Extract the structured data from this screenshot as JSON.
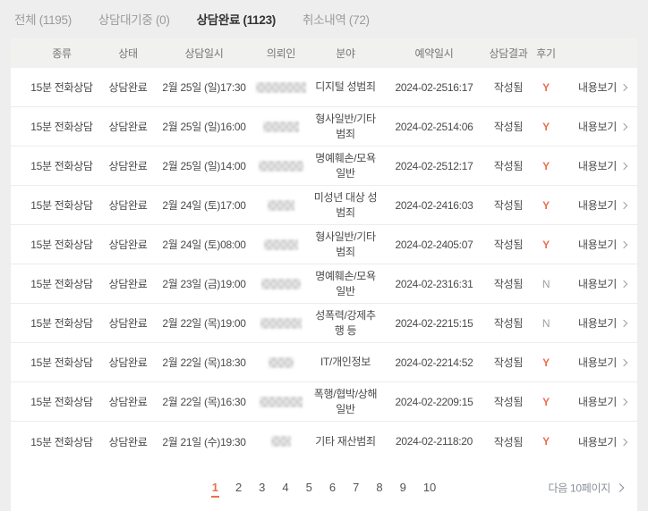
{
  "colors": {
    "accent": "#e8704f",
    "review_no": "#9aa0a6",
    "header_bg": "#f1f1ef"
  },
  "tabs": [
    {
      "key": "all",
      "label": "전체",
      "count": "1195",
      "active": false
    },
    {
      "key": "waiting",
      "label": "상담대기중",
      "count": "0",
      "active": false
    },
    {
      "key": "completed",
      "label": "상담완료",
      "count": "1123",
      "active": true
    },
    {
      "key": "canceled",
      "label": "취소내역",
      "count": "72",
      "active": false
    }
  ],
  "table": {
    "columns": [
      "종류",
      "상태",
      "상담일시",
      "의뢰인",
      "분야",
      "예약일시",
      "상담결과",
      "후기",
      ""
    ],
    "view_label": "내용보기",
    "rows": [
      {
        "type": "15분 전화상담",
        "status": "상담완료",
        "datetime": "2월 25일 (일)17:30",
        "client_masked": true,
        "mask_w": 56,
        "field": "디지털 성범죄",
        "reserved": "2024-02-2516:17",
        "result": "작성됨",
        "review": "Y"
      },
      {
        "type": "15분 전화상담",
        "status": "상담완료",
        "datetime": "2월 25일 (일)16:00",
        "client_masked": true,
        "mask_w": 40,
        "field": "형사일반/기타범죄",
        "reserved": "2024-02-2514:06",
        "result": "작성됨",
        "review": "Y"
      },
      {
        "type": "15분 전화상담",
        "status": "상담완료",
        "datetime": "2월 25일 (일)14:00",
        "client_masked": true,
        "mask_w": 50,
        "field": "명예훼손/모욕 일반",
        "reserved": "2024-02-2512:17",
        "result": "작성됨",
        "review": "Y"
      },
      {
        "type": "15분 전화상담",
        "status": "상담완료",
        "datetime": "2월 24일 (토)17:00",
        "client_masked": true,
        "mask_w": 30,
        "field": "미성년 대상 성범죄",
        "reserved": "2024-02-2416:03",
        "result": "작성됨",
        "review": "Y"
      },
      {
        "type": "15분 전화상담",
        "status": "상담완료",
        "datetime": "2월 24일 (토)08:00",
        "client_masked": true,
        "mask_w": 38,
        "field": "형사일반/기타범죄",
        "reserved": "2024-02-2405:07",
        "result": "작성됨",
        "review": "Y"
      },
      {
        "type": "15분 전화상담",
        "status": "상담완료",
        "datetime": "2월 23일 (금)19:00",
        "client_masked": true,
        "mask_w": 44,
        "field": "명예훼손/모욕 일반",
        "reserved": "2024-02-2316:31",
        "result": "작성됨",
        "review": "N"
      },
      {
        "type": "15분 전화상담",
        "status": "상담완료",
        "datetime": "2월 22일 (목)19:00",
        "client_masked": true,
        "mask_w": 46,
        "field": "성폭력/강제추행 등",
        "reserved": "2024-02-2215:15",
        "result": "작성됨",
        "review": "N"
      },
      {
        "type": "15분 전화상담",
        "status": "상담완료",
        "datetime": "2월 22일 (목)18:30",
        "client_masked": true,
        "mask_w": 28,
        "field": "IT/개인정보",
        "reserved": "2024-02-2214:52",
        "result": "작성됨",
        "review": "Y"
      },
      {
        "type": "15분 전화상담",
        "status": "상담완료",
        "datetime": "2월 22일 (목)16:30",
        "client_masked": true,
        "mask_w": 48,
        "field": "폭행/협박/상해 일반",
        "reserved": "2024-02-2209:15",
        "result": "작성됨",
        "review": "Y"
      },
      {
        "type": "15분 전화상담",
        "status": "상담완료",
        "datetime": "2월 21일 (수)19:30",
        "client_masked": true,
        "mask_w": 22,
        "field": "기타 재산범죄",
        "reserved": "2024-02-2118:20",
        "result": "작성됨",
        "review": "Y"
      }
    ]
  },
  "pagination": {
    "pages": [
      "1",
      "2",
      "3",
      "4",
      "5",
      "6",
      "7",
      "8",
      "9",
      "10"
    ],
    "active_page": "1",
    "next_label": "다음 10페이지"
  }
}
